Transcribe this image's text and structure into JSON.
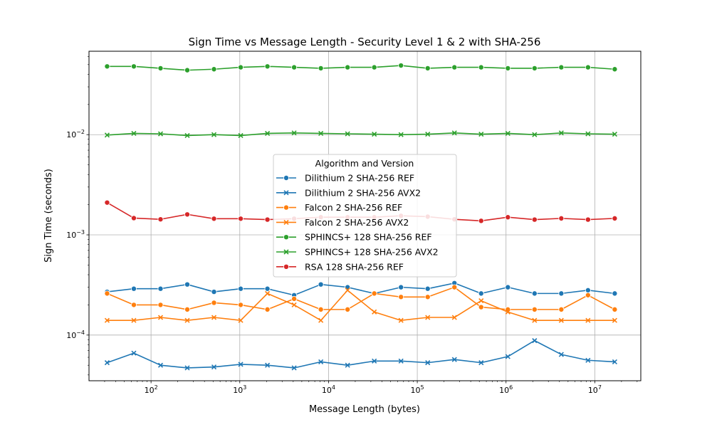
{
  "chart_data": {
    "type": "line",
    "title": "Sign Time vs Message Length - Security Level 1 & 2 with SHA-256",
    "xlabel": "Message Length (bytes)",
    "ylabel": "Sign Time (seconds)",
    "xscale": "log",
    "yscale": "log",
    "xlim": [
      20,
      33000000
    ],
    "ylim": [
      3.5e-05,
      0.068
    ],
    "grid": true,
    "x_ticks": [
      {
        "value": 100,
        "base": "10",
        "exp": "2"
      },
      {
        "value": 1000,
        "base": "10",
        "exp": "3"
      },
      {
        "value": 10000,
        "base": "10",
        "exp": "4"
      },
      {
        "value": 100000,
        "base": "10",
        "exp": "5"
      },
      {
        "value": 1000000,
        "base": "10",
        "exp": "6"
      },
      {
        "value": 10000000,
        "base": "10",
        "exp": "7"
      }
    ],
    "y_ticks": [
      {
        "value": 0.0001,
        "base": "10",
        "exp": "−4"
      },
      {
        "value": 0.001,
        "base": "10",
        "exp": "−3"
      },
      {
        "value": 0.01,
        "base": "10",
        "exp": "−2"
      }
    ],
    "legend": {
      "title": "Algorithm and Version",
      "placement": "center"
    },
    "x": [
      32,
      64,
      128,
      256,
      512,
      1024,
      2048,
      4096,
      8192,
      16384,
      32768,
      65536,
      131072,
      262144,
      524288,
      1048576,
      2097152,
      4194304,
      8388608,
      16777216
    ],
    "series": [
      {
        "name": "Dilithium 2 SHA-256 REF",
        "color": "#1f77b4",
        "marker": "circle",
        "values": [
          0.00027,
          0.00029,
          0.00029,
          0.00032,
          0.00027,
          0.00029,
          0.00029,
          0.00025,
          0.00032,
          0.0003,
          0.00026,
          0.0003,
          0.00029,
          0.00033,
          0.00026,
          0.0003,
          0.00026,
          0.00026,
          0.00028,
          0.00026
        ]
      },
      {
        "name": "Dilithium 2 SHA-256 AVX2",
        "color": "#1f77b4",
        "marker": "x",
        "values": [
          5.3e-05,
          6.6e-05,
          5e-05,
          4.7e-05,
          4.8e-05,
          5.1e-05,
          5e-05,
          4.7e-05,
          5.4e-05,
          5e-05,
          5.5e-05,
          5.5e-05,
          5.3e-05,
          5.7e-05,
          5.3e-05,
          6.1e-05,
          8.8e-05,
          6.4e-05,
          5.6e-05,
          5.4e-05
        ]
      },
      {
        "name": "Falcon 2 SHA-256 REF",
        "color": "#ff7f0e",
        "marker": "circle",
        "values": [
          0.00026,
          0.0002,
          0.0002,
          0.00018,
          0.00021,
          0.0002,
          0.00018,
          0.00023,
          0.00018,
          0.00018,
          0.00026,
          0.00024,
          0.00024,
          0.0003,
          0.00019,
          0.00018,
          0.00018,
          0.00018,
          0.00025,
          0.00018
        ]
      },
      {
        "name": "Falcon 2 SHA-256 AVX2",
        "color": "#ff7f0e",
        "marker": "x",
        "values": [
          0.00014,
          0.00014,
          0.00015,
          0.00014,
          0.00015,
          0.00014,
          0.00026,
          0.0002,
          0.00014,
          0.00028,
          0.00017,
          0.00014,
          0.00015,
          0.00015,
          0.00022,
          0.00017,
          0.00014,
          0.00014,
          0.00014,
          0.00014
        ]
      },
      {
        "name": "SPHINCS+ 128 SHA-256 REF",
        "color": "#2ca02c",
        "marker": "circle",
        "values": [
          0.048,
          0.048,
          0.046,
          0.044,
          0.045,
          0.047,
          0.048,
          0.047,
          0.046,
          0.047,
          0.047,
          0.049,
          0.046,
          0.047,
          0.047,
          0.046,
          0.046,
          0.047,
          0.047,
          0.045
        ]
      },
      {
        "name": "SPHINCS+ 128 SHA-256 AVX2",
        "color": "#2ca02c",
        "marker": "x",
        "values": [
          0.0099,
          0.0103,
          0.0102,
          0.0098,
          0.01,
          0.0098,
          0.0103,
          0.0104,
          0.0103,
          0.0102,
          0.0101,
          0.01,
          0.0101,
          0.0104,
          0.0101,
          0.0103,
          0.01,
          0.0104,
          0.0102,
          0.0101
        ]
      },
      {
        "name": "RSA 128 SHA-256 REF",
        "color": "#d62728",
        "marker": "circle",
        "values": [
          0.0021,
          0.00147,
          0.00143,
          0.0016,
          0.00145,
          0.00145,
          0.00142,
          0.00145,
          0.0015,
          0.0015,
          0.0015,
          0.00155,
          0.00152,
          0.00143,
          0.00138,
          0.0015,
          0.00142,
          0.00146,
          0.00142,
          0.00146
        ]
      }
    ]
  }
}
